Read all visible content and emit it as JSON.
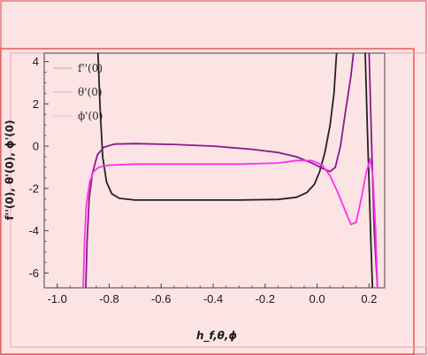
{
  "chart_data": {
    "type": "line",
    "xlabel": "h_f,θ,ϕ",
    "ylabel": "f''(0), θ'(0), ϕ'(0)",
    "xlim": [
      -1.05,
      0.26
    ],
    "ylim": [
      -6.7,
      4.4
    ],
    "x_ticks": [
      "-1.0",
      "-0.8",
      "-0.6",
      "-0.4",
      "-0.2",
      "0.0",
      "0.2"
    ],
    "y_ticks": [
      "4",
      "2",
      "0",
      "-2",
      "-4",
      "-6"
    ],
    "legend_position": "top-left",
    "grid": false,
    "series": [
      {
        "name": "f''(0)",
        "color": "#222222",
        "segments": [
          [
            [
              -0.843,
              4.4
            ],
            [
              -0.835,
              1.8
            ],
            [
              -0.825,
              -0.5
            ],
            [
              -0.81,
              -1.7
            ],
            [
              -0.79,
              -2.25
            ],
            [
              -0.76,
              -2.47
            ],
            [
              -0.7,
              -2.55
            ],
            [
              -0.5,
              -2.55
            ],
            [
              -0.3,
              -2.55
            ],
            [
              -0.15,
              -2.52
            ],
            [
              -0.08,
              -2.42
            ],
            [
              -0.04,
              -2.2
            ],
            [
              -0.01,
              -1.8
            ],
            [
              0.01,
              -1.2
            ],
            [
              0.03,
              -0.3
            ],
            [
              0.05,
              1.0
            ],
            [
              0.065,
              2.5
            ],
            [
              0.075,
              4.4
            ]
          ],
          [
            [
              0.185,
              4.4
            ],
            [
              0.193,
              1.0
            ],
            [
              0.2,
              -1.8
            ],
            [
              0.207,
              -4.5
            ],
            [
              0.213,
              -6.7
            ]
          ]
        ]
      },
      {
        "name": "θ'(0)",
        "color": "#8a1a8a",
        "segments": [
          [
            [
              -0.89,
              -6.7
            ],
            [
              -0.885,
              -4.5
            ],
            [
              -0.877,
              -2.5
            ],
            [
              -0.865,
              -1.3
            ],
            [
              -0.845,
              -0.4
            ],
            [
              -0.82,
              -0.05
            ],
            [
              -0.78,
              0.1
            ],
            [
              -0.7,
              0.12
            ],
            [
              -0.55,
              0.08
            ],
            [
              -0.4,
              0.0
            ],
            [
              -0.25,
              -0.15
            ],
            [
              -0.15,
              -0.3
            ],
            [
              -0.08,
              -0.5
            ],
            [
              -0.02,
              -0.8
            ],
            [
              0.02,
              -1.05
            ],
            [
              0.05,
              -1.2
            ],
            [
              0.07,
              -1.0
            ],
            [
              0.09,
              0.0
            ],
            [
              0.11,
              1.7
            ],
            [
              0.13,
              3.3
            ],
            [
              0.14,
              4.4
            ]
          ],
          [
            [
              0.2,
              4.4
            ],
            [
              0.21,
              0.0
            ],
            [
              0.22,
              -4.0
            ],
            [
              0.232,
              -6.7
            ]
          ]
        ]
      },
      {
        "name": "ϕ'(0)",
        "color": "#ff2ef0",
        "segments": [
          [
            [
              -0.9,
              -6.7
            ],
            [
              -0.895,
              -4.5
            ],
            [
              -0.888,
              -2.8
            ],
            [
              -0.875,
              -1.7
            ],
            [
              -0.86,
              -1.2
            ],
            [
              -0.84,
              -1.0
            ],
            [
              -0.8,
              -0.9
            ],
            [
              -0.7,
              -0.85
            ],
            [
              -0.5,
              -0.85
            ],
            [
              -0.3,
              -0.85
            ],
            [
              -0.15,
              -0.8
            ],
            [
              -0.08,
              -0.68
            ],
            [
              -0.02,
              -0.68
            ],
            [
              0.02,
              -0.9
            ],
            [
              0.05,
              -1.4
            ],
            [
              0.08,
              -2.2
            ],
            [
              0.11,
              -3.1
            ],
            [
              0.13,
              -3.7
            ],
            [
              0.15,
              -3.6
            ],
            [
              0.17,
              -2.5
            ],
            [
              0.19,
              -1.2
            ],
            [
              0.205,
              -0.6
            ],
            [
              0.215,
              -1.5
            ],
            [
              0.225,
              -4.0
            ],
            [
              0.232,
              -6.7
            ]
          ]
        ]
      }
    ]
  }
}
